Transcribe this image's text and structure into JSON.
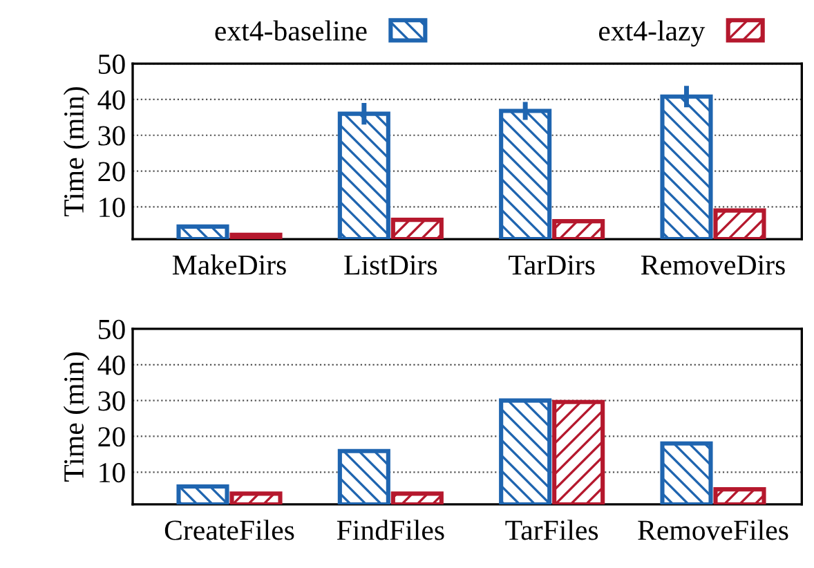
{
  "chart_data": [
    {
      "type": "bar",
      "categories": [
        "MakeDirs",
        "ListDirs",
        "TarDirs",
        "RemoveDirs"
      ],
      "ylabel": "Time (min)",
      "ylim": [
        1,
        50
      ],
      "yticks": [
        10,
        20,
        30,
        40,
        50
      ],
      "grid": "y",
      "legend": "top",
      "series": [
        {
          "name": "ext4-baseline",
          "color": "#1f65b0",
          "values": [
            4.5,
            36,
            36.8,
            40.8
          ],
          "errors": [
            null,
            3,
            2.5,
            3
          ]
        },
        {
          "name": "ext4-lazy",
          "color": "#b5182d",
          "values": [
            2.2,
            6.4,
            6,
            9
          ]
        }
      ]
    },
    {
      "type": "bar",
      "categories": [
        "CreateFiles",
        "FindFiles",
        "TarFiles",
        "RemoveFiles"
      ],
      "ylabel": "Time (min)",
      "ylim": [
        1,
        50
      ],
      "yticks": [
        10,
        20,
        30,
        40,
        50
      ],
      "grid": "y",
      "series": [
        {
          "color": "#1f65b0",
          "values": [
            6,
            15.9,
            30,
            18
          ]
        },
        {
          "color": "#b5182d",
          "values": [
            4,
            4,
            29.6,
            5.2
          ]
        }
      ]
    }
  ]
}
